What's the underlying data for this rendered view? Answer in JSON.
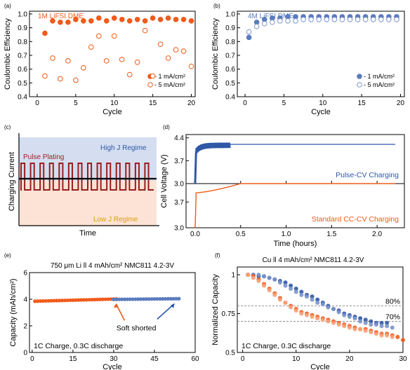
{
  "colors": {
    "orange": "#f05a1a",
    "orange_light": "#f7a37a",
    "blue": "#2f58a6",
    "blue_mid": "#5a7bbd",
    "blue_light": "#7b93c9",
    "dark_red": "#9b1c1c",
    "high_region": "#d4def0",
    "low_region": "#fce3d5",
    "gold": "#d9a000",
    "gray": "#888888"
  },
  "chart_data": [
    {
      "panel": "(a)",
      "type": "scatter",
      "title": "1M LiFSI DME",
      "xlabel": "Cycle",
      "ylabel": "Coulombic Efficiency",
      "xlim": [
        -1,
        20.5
      ],
      "ylim": [
        0.4,
        1.02
      ],
      "xticks": [
        "0",
        "5",
        "10",
        "15",
        "20"
      ],
      "yticks": [
        "0.4",
        "0.5",
        "0.6",
        "0.7",
        "0.8",
        "0.9",
        "1.0"
      ],
      "legend_position": "bottom-right",
      "series": [
        {
          "name": "- 1 mA/cm²",
          "style": "filled",
          "x": [
            1,
            2,
            3,
            4,
            5,
            6,
            7,
            8,
            9,
            10,
            11,
            12,
            13,
            14,
            15,
            16,
            17,
            18,
            19,
            20
          ],
          "y": [
            0.86,
            0.95,
            0.94,
            0.94,
            0.96,
            0.95,
            0.95,
            0.97,
            0.95,
            0.97,
            0.96,
            0.95,
            0.96,
            0.95,
            0.97,
            0.96,
            0.97,
            0.96,
            0.96,
            0.95
          ]
        },
        {
          "name": "- 5 mA/cm²",
          "style": "open",
          "x": [
            1,
            2,
            3,
            4,
            5,
            6,
            7,
            8,
            9,
            10,
            11,
            12,
            13,
            14,
            15,
            16,
            17,
            18,
            19,
            20
          ],
          "y": [
            0.55,
            0.68,
            0.53,
            0.66,
            0.52,
            0.61,
            0.76,
            0.84,
            0.66,
            0.84,
            0.67,
            0.56,
            0.65,
            0.88,
            0.55,
            0.78,
            0.68,
            0.74,
            0.73,
            0.62
          ]
        }
      ]
    },
    {
      "panel": "(b)",
      "type": "scatter",
      "title": "4M LiFSI DME",
      "xlabel": "Cycle",
      "ylabel": "Coulombic Efficiency",
      "xlim": [
        -1,
        20.5
      ],
      "ylim": [
        0.4,
        1.02
      ],
      "xticks": [
        "0",
        "5",
        "10",
        "15",
        "20"
      ],
      "yticks": [
        "0.4",
        "0.5",
        "0.6",
        "0.7",
        "0.8",
        "0.9",
        "1.0"
      ],
      "legend_position": "bottom-right",
      "series": [
        {
          "name": "- 1 mA/cm²",
          "style": "filled",
          "x": [
            0.5,
            1.5,
            2.5,
            3.5,
            4.5,
            5.5,
            6.5,
            7.5,
            8.5,
            9.5,
            10.5,
            11.5,
            12.5,
            13.5,
            14.5,
            15.5,
            16.5,
            17.5,
            18.5,
            19.5
          ],
          "y": [
            0.83,
            0.94,
            0.96,
            0.97,
            0.97,
            0.98,
            0.98,
            0.98,
            0.98,
            0.98,
            0.98,
            0.98,
            0.98,
            0.98,
            0.98,
            0.98,
            0.98,
            0.98,
            0.98,
            0.98
          ]
        },
        {
          "name": "- 5 mA/cm²",
          "style": "open",
          "x": [
            0.5,
            1.5,
            2.5,
            3.5,
            4.5,
            5.5,
            6.5,
            7.5,
            8.5,
            9.5,
            10.5,
            11.5,
            12.5,
            13.5,
            14.5,
            15.5,
            16.5,
            17.5,
            18.5,
            19.5
          ],
          "y": [
            0.87,
            0.91,
            0.93,
            0.94,
            0.95,
            0.95,
            0.95,
            0.96,
            0.96,
            0.96,
            0.96,
            0.96,
            0.96,
            0.96,
            0.96,
            0.96,
            0.96,
            0.96,
            0.96,
            0.96
          ]
        }
      ]
    },
    {
      "panel": "(c)",
      "type": "line",
      "xlabel": "Time",
      "ylabel": "Charging Current",
      "labels": {
        "pulse": "Pulse Plating",
        "high": "High J Regime",
        "low": "Low J Regime"
      },
      "pulses": 14
    },
    {
      "panel": "(d)",
      "type": "line",
      "xlabel": "Time (hours)",
      "ylabel": "Cell Voltage (V)",
      "xlim": [
        -0.1,
        2.3
      ],
      "xticks": [
        "0.0",
        "0.5",
        "1.0",
        "1.5",
        "2.0"
      ],
      "top": {
        "ylim": [
          3.0,
          4.5
        ],
        "yticks": [
          "3.0",
          "3.7",
          "4.4"
        ],
        "label": "Pulse-CV Charging",
        "cv_level": 4.2,
        "pulse_end": 0.38,
        "cv_end": 2.2
      },
      "bottom": {
        "ylim": [
          3.0,
          4.2
        ],
        "yticks": [
          "3.0",
          "3.7"
        ],
        "label": "Standard CC-CV Charging",
        "cv_level": 4.2,
        "cc_end": 0.5,
        "cv_end": 2.2
      }
    },
    {
      "panel": "(e)",
      "type": "scatter",
      "title": "750 μm Li ll 4 mAh/cm² NMC811 4.2-3V",
      "xlabel": "Cycle",
      "ylabel": "Capacity (mAh/cm²)",
      "xlim": [
        -1,
        60
      ],
      "ylim": [
        0,
        6
      ],
      "xticks": [
        "0",
        "15",
        "30",
        "45",
        "60"
      ],
      "yticks": [
        "0",
        "2",
        "4",
        "6"
      ],
      "annotation": "Soft shorted",
      "note": "1C Charge, 0.3C discharge",
      "series": [
        {
          "name": "orange",
          "x_start": 1,
          "x_end": 31,
          "y_start": 3.85,
          "y_end": 4.02
        },
        {
          "name": "blue",
          "x_start": 1,
          "x_end": 54,
          "y_start": 3.92,
          "y_end": 4.04
        }
      ]
    },
    {
      "panel": "(f)",
      "type": "scatter",
      "title": "Cu ll 4 mAh/cm² NMC811 4.2-3V",
      "xlabel": "Cycle",
      "ylabel": "Normalized Capacity",
      "xlim": [
        -1,
        30
      ],
      "ylim": [
        0.5,
        1.05
      ],
      "xticks": [
        "0",
        "10",
        "20",
        "30"
      ],
      "yticks": [
        "0.5",
        "0.75",
        "1"
      ],
      "ref_lines": [
        {
          "y": 0.8,
          "label": "80%"
        },
        {
          "y": 0.7,
          "label": "70%"
        }
      ],
      "note": "1C Charge, 0.3C discharge",
      "series": [
        {
          "name": "blue dark",
          "x": [
            1,
            2,
            3,
            4,
            5,
            6,
            7,
            8,
            9,
            10,
            11,
            12,
            13,
            14,
            15,
            16,
            17,
            18,
            19,
            20,
            21,
            22,
            23,
            24,
            25,
            26,
            27
          ],
          "y": [
            1.0,
            1.0,
            0.99,
            0.99,
            0.98,
            0.97,
            0.96,
            0.95,
            0.93,
            0.91,
            0.89,
            0.87,
            0.86,
            0.84,
            0.82,
            0.8,
            0.78,
            0.77,
            0.75,
            0.74,
            0.73,
            0.72,
            0.71,
            0.7,
            0.69,
            0.69,
            0.69
          ]
        },
        {
          "name": "blue light",
          "x": [
            1,
            2,
            3,
            4,
            5,
            6,
            7,
            8,
            9,
            10,
            11,
            12,
            13,
            14,
            15,
            16,
            17,
            18,
            19,
            20,
            21,
            22,
            23,
            24,
            25,
            26,
            27,
            28
          ],
          "y": [
            1.0,
            1.0,
            1.0,
            0.99,
            0.98,
            0.97,
            0.95,
            0.93,
            0.91,
            0.89,
            0.87,
            0.86,
            0.84,
            0.82,
            0.81,
            0.79,
            0.78,
            0.76,
            0.74,
            0.73,
            0.72,
            0.7,
            0.69,
            0.68,
            0.68,
            0.67,
            0.67,
            0.66
          ]
        },
        {
          "name": "orange dark",
          "x": [
            1,
            2,
            3,
            4,
            5,
            6,
            7,
            8,
            9,
            10,
            11,
            12,
            13,
            14,
            15,
            16,
            17,
            18,
            19,
            20,
            21,
            22,
            23,
            24,
            25,
            26,
            27,
            28,
            29,
            30
          ],
          "y": [
            1.0,
            0.99,
            0.97,
            0.94,
            0.91,
            0.88,
            0.85,
            0.82,
            0.8,
            0.78,
            0.76,
            0.75,
            0.74,
            0.73,
            0.72,
            0.71,
            0.7,
            0.69,
            0.68,
            0.67,
            0.66,
            0.65,
            0.65,
            0.64,
            0.63,
            0.62,
            0.62,
            0.61,
            0.6,
            0.58
          ]
        },
        {
          "name": "orange light",
          "x": [
            1,
            2,
            3,
            4,
            5,
            6,
            7,
            8,
            9,
            10,
            11,
            12,
            13,
            14,
            15,
            16,
            17,
            18,
            19,
            20,
            21,
            22,
            23,
            24,
            25,
            26,
            27,
            28
          ],
          "y": [
            1.0,
            0.98,
            0.96,
            0.93,
            0.9,
            0.87,
            0.84,
            0.82,
            0.79,
            0.77,
            0.75,
            0.74,
            0.73,
            0.72,
            0.71,
            0.7,
            0.69,
            0.68,
            0.67,
            0.66,
            0.65,
            0.65,
            0.64,
            0.63,
            0.62,
            0.61,
            0.61,
            0.6
          ]
        }
      ]
    }
  ]
}
